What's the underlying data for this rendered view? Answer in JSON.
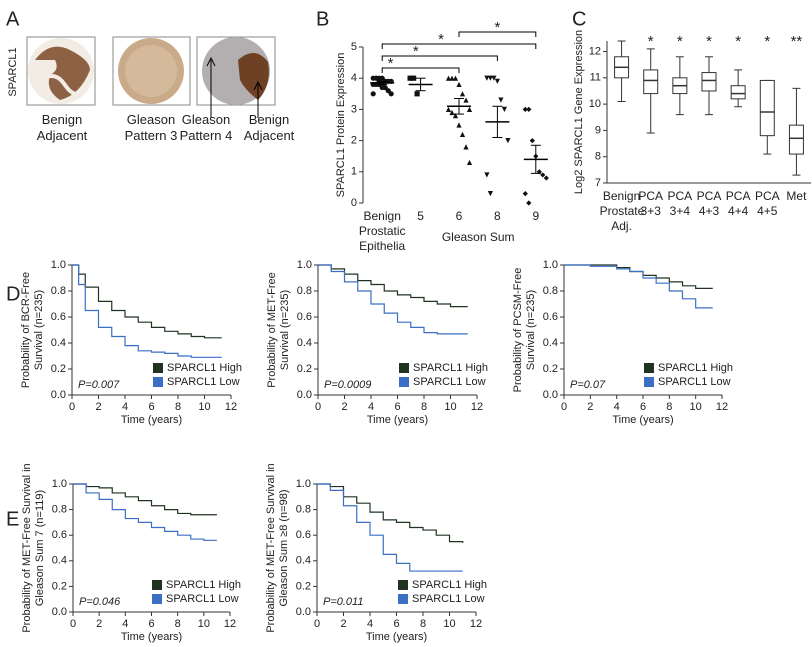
{
  "panel_labels": [
    "A",
    "B",
    "C",
    "D",
    "E"
  ],
  "panel_a": {
    "stain_label": "SPARCL1",
    "captions": [
      "Benign Adjacent",
      "Gleason Pattern 3",
      "Gleason Pattern 4",
      "Benign Adjacent"
    ]
  },
  "chart_data": [
    {
      "type": "strip",
      "ylabel": "SPARCL1 Protein Expression",
      "xlabel": "Gleason Sum",
      "categories": [
        "Benign Prostatic Epithelia",
        "5",
        "6",
        "8",
        "9"
      ],
      "points": [
        [
          4,
          4,
          4,
          4,
          3.9,
          3.9,
          3.9,
          3.8,
          3.8,
          3.8,
          3.7,
          3.7,
          3.6,
          3.5,
          3.5,
          4,
          3.9,
          3.8
        ],
        [
          4,
          4,
          3.5
        ],
        [
          4,
          4,
          4,
          3.8,
          3.5,
          3.3,
          3,
          3,
          2.9,
          2.8,
          2.5,
          2.2,
          1.8,
          1.3
        ],
        [
          4,
          4,
          4,
          3.9,
          3.3,
          3,
          2,
          0.9,
          0.3
        ],
        [
          3,
          3,
          2,
          1.5,
          1,
          0.9,
          0.8,
          0.3,
          0
        ]
      ],
      "mean": [
        3.85,
        3.8,
        3.1,
        2.6,
        1.4
      ],
      "sem": [
        0.05,
        0.2,
        0.25,
        0.5,
        0.45
      ],
      "color": "#111111",
      "significance": [
        {
          "between": [
            0,
            2
          ],
          "label": "*"
        },
        {
          "between": [
            0,
            3
          ],
          "label": "*"
        },
        {
          "between": [
            0,
            4
          ],
          "label": "*"
        },
        {
          "between": [
            2,
            4
          ],
          "label": "*"
        }
      ],
      "ylim": [
        0,
        5
      ],
      "yticks": [
        0,
        1,
        2,
        3,
        4,
        5
      ]
    },
    {
      "type": "box",
      "ylabel": "Log2 SPARCL1 Gene Expression",
      "categories": [
        "Benign Prostate Adj.",
        "PCA 3+3",
        "PCA 3+4",
        "PCA 4+3",
        "PCA 4+4",
        "PCA 4+5",
        "Met"
      ],
      "min": [
        10.1,
        8.9,
        9.6,
        9.6,
        9.9,
        8.1,
        7.3
      ],
      "q1": [
        11.0,
        10.4,
        10.4,
        10.5,
        10.2,
        8.8,
        8.1
      ],
      "median": [
        11.4,
        10.9,
        10.7,
        10.9,
        10.4,
        9.7,
        8.7
      ],
      "q3": [
        11.8,
        11.3,
        11.0,
        11.2,
        10.7,
        10.9,
        9.2
      ],
      "max": [
        12.4,
        12.1,
        11.8,
        11.8,
        11.3,
        10.9,
        10.6
      ],
      "significance_labels": [
        null,
        "*",
        "*",
        "*",
        "*",
        "*",
        "**"
      ],
      "color": "#333333",
      "ylim": [
        7,
        12.4
      ],
      "yticks": [
        7,
        8,
        9,
        10,
        11,
        12
      ]
    },
    {
      "type": "km",
      "ylabel": [
        "Probability of BCR-Free",
        "Survival (n=235)"
      ],
      "xlabel": "Time (years)",
      "annotation": "P=0.007",
      "series": [
        {
          "name": "SPARCL1 High",
          "color": "#1f3320",
          "x": [
            0,
            0.5,
            1,
            2,
            3,
            4,
            5,
            6,
            7,
            8,
            9,
            10,
            11,
            11.3
          ],
          "values": [
            1,
            0.93,
            0.83,
            0.72,
            0.65,
            0.6,
            0.56,
            0.52,
            0.49,
            0.47,
            0.45,
            0.44,
            0.44,
            0.44
          ]
        },
        {
          "name": "SPARCL1 Low",
          "color": "#3b6fc6",
          "x": [
            0,
            0.5,
            1,
            2,
            3,
            4,
            5,
            6,
            7,
            8,
            9,
            10,
            11,
            11.3
          ],
          "values": [
            1,
            0.85,
            0.65,
            0.52,
            0.45,
            0.38,
            0.34,
            0.33,
            0.32,
            0.3,
            0.29,
            0.29,
            0.29,
            0.29
          ]
        }
      ],
      "xlim": [
        0,
        12
      ],
      "xticks": [
        0,
        2,
        4,
        6,
        8,
        10,
        12
      ],
      "ylim": [
        0,
        1
      ],
      "yticks": [
        {
          "value": 0,
          "label": "0.0"
        },
        {
          "value": 0.2,
          "label": "0.2"
        },
        {
          "value": 0.4,
          "label": "0.4"
        },
        {
          "value": 0.6,
          "label": "0.6"
        },
        {
          "value": 0.8,
          "label": "0.8"
        },
        {
          "value": 1,
          "label": "1.0"
        }
      ]
    },
    {
      "type": "km",
      "ylabel": [
        "Probability of MET-Free",
        "Survival (n=235)"
      ],
      "xlabel": "Time (years)",
      "annotation": "P=0.0009",
      "series": [
        {
          "name": "SPARCL1 High",
          "color": "#1f3320",
          "x": [
            0,
            1,
            2,
            3,
            4,
            5,
            6,
            7,
            8,
            9,
            10,
            11,
            11.3
          ],
          "values": [
            1,
            0.97,
            0.93,
            0.88,
            0.85,
            0.8,
            0.77,
            0.75,
            0.72,
            0.7,
            0.68,
            0.68,
            0.68
          ]
        },
        {
          "name": "SPARCL1 Low",
          "color": "#3b6fc6",
          "x": [
            0,
            1,
            2,
            3,
            4,
            5,
            6,
            7,
            8,
            9,
            10,
            11,
            11.3
          ],
          "values": [
            1,
            0.95,
            0.87,
            0.8,
            0.7,
            0.63,
            0.56,
            0.52,
            0.48,
            0.47,
            0.47,
            0.47,
            0.47
          ]
        }
      ],
      "xlim": [
        0,
        12
      ],
      "xticks": [
        0,
        2,
        4,
        6,
        8,
        10,
        12
      ],
      "ylim": [
        0,
        1
      ],
      "yticks": [
        {
          "value": 0,
          "label": "0.0"
        },
        {
          "value": 0.2,
          "label": "0.2"
        },
        {
          "value": 0.4,
          "label": "0.4"
        },
        {
          "value": 0.6,
          "label": "0.6"
        },
        {
          "value": 0.8,
          "label": "0.8"
        },
        {
          "value": 1,
          "label": "1.0"
        }
      ]
    },
    {
      "type": "km",
      "ylabel": [
        "Probability of PCSM-Free",
        "Survival (n=235)"
      ],
      "xlabel": "Time (years)",
      "annotation": "P=0.07",
      "series": [
        {
          "name": "SPARCL1 High",
          "color": "#1f3320",
          "x": [
            0,
            2,
            4,
            5,
            6,
            7,
            8,
            9,
            10,
            11,
            11.3
          ],
          "values": [
            1,
            1,
            0.98,
            0.95,
            0.92,
            0.9,
            0.87,
            0.84,
            0.82,
            0.82,
            0.82
          ]
        },
        {
          "name": "SPARCL1 Low",
          "color": "#3b6fc6",
          "x": [
            0,
            2,
            4,
            5,
            6,
            7,
            8,
            9,
            10,
            11,
            11.3
          ],
          "values": [
            1,
            0.99,
            0.97,
            0.95,
            0.9,
            0.86,
            0.8,
            0.74,
            0.67,
            0.67,
            0.67
          ]
        }
      ],
      "xlim": [
        0,
        12
      ],
      "xticks": [
        0,
        2,
        4,
        6,
        8,
        10,
        12
      ],
      "ylim": [
        0,
        1
      ],
      "yticks": [
        {
          "value": 0,
          "label": "0.0"
        },
        {
          "value": 0.2,
          "label": "0.2"
        },
        {
          "value": 0.4,
          "label": "0.4"
        },
        {
          "value": 0.6,
          "label": "0.6"
        },
        {
          "value": 0.8,
          "label": "0.8"
        },
        {
          "value": 1,
          "label": "1.0"
        }
      ]
    },
    {
      "type": "km",
      "ylabel": [
        "Probability of MET-Free Survival in",
        "Gleason Sum 7 (n=119)"
      ],
      "xlabel": "Time (years)",
      "annotation": "P=0.046",
      "series": [
        {
          "name": "SPARCL1 High",
          "color": "#1f3320",
          "x": [
            0,
            1,
            2,
            3,
            4,
            5,
            6,
            7,
            8,
            9,
            10,
            11
          ],
          "values": [
            1,
            0.98,
            0.97,
            0.93,
            0.9,
            0.87,
            0.83,
            0.8,
            0.77,
            0.76,
            0.76,
            0.76
          ]
        },
        {
          "name": "SPARCL1 Low",
          "color": "#3b6fc6",
          "x": [
            0,
            1,
            2,
            3,
            4,
            5,
            6,
            7,
            8,
            9,
            10,
            11
          ],
          "values": [
            1,
            0.93,
            0.88,
            0.8,
            0.73,
            0.7,
            0.66,
            0.63,
            0.6,
            0.57,
            0.56,
            0.56
          ]
        }
      ],
      "xlim": [
        0,
        12
      ],
      "xticks": [
        0,
        2,
        4,
        6,
        8,
        10,
        12
      ],
      "ylim": [
        0,
        1
      ],
      "yticks": [
        {
          "value": 0,
          "label": "0.0"
        },
        {
          "value": 0.2,
          "label": "0.2"
        },
        {
          "value": 0.4,
          "label": "0.4"
        },
        {
          "value": 0.6,
          "label": "0.6"
        },
        {
          "value": 0.8,
          "label": "0.8"
        },
        {
          "value": 1,
          "label": "1.0"
        }
      ]
    },
    {
      "type": "km",
      "ylabel": [
        "Probability of MET-Free Survival in",
        "Gleason Sum ≥8 (n=98)"
      ],
      "xlabel": "Time (years)",
      "annotation": "P=0.011",
      "series": [
        {
          "name": "SPARCL1 High",
          "color": "#1f3320",
          "x": [
            0,
            1,
            2,
            3,
            4,
            5,
            6,
            7,
            8,
            9,
            10,
            11
          ],
          "values": [
            1,
            0.98,
            0.9,
            0.85,
            0.78,
            0.72,
            0.7,
            0.66,
            0.64,
            0.6,
            0.55,
            0.54
          ]
        },
        {
          "name": "SPARCL1 Low",
          "color": "#3b6fc6",
          "x": [
            0,
            1,
            2,
            3,
            4,
            5,
            6,
            7,
            8,
            9,
            10,
            11
          ],
          "values": [
            1,
            0.95,
            0.83,
            0.7,
            0.6,
            0.45,
            0.38,
            0.32,
            0.32,
            0.32,
            0.32,
            0.32
          ]
        }
      ],
      "xlim": [
        0,
        12
      ],
      "xticks": [
        0,
        2,
        4,
        6,
        8,
        10,
        12
      ],
      "ylim": [
        0,
        1
      ],
      "yticks": [
        {
          "value": 0,
          "label": "0.0"
        },
        {
          "value": 0.2,
          "label": "0.2"
        },
        {
          "value": 0.4,
          "label": "0.4"
        },
        {
          "value": 0.6,
          "label": "0.6"
        },
        {
          "value": 0.8,
          "label": "0.8"
        },
        {
          "value": 1,
          "label": "1.0"
        }
      ]
    }
  ]
}
